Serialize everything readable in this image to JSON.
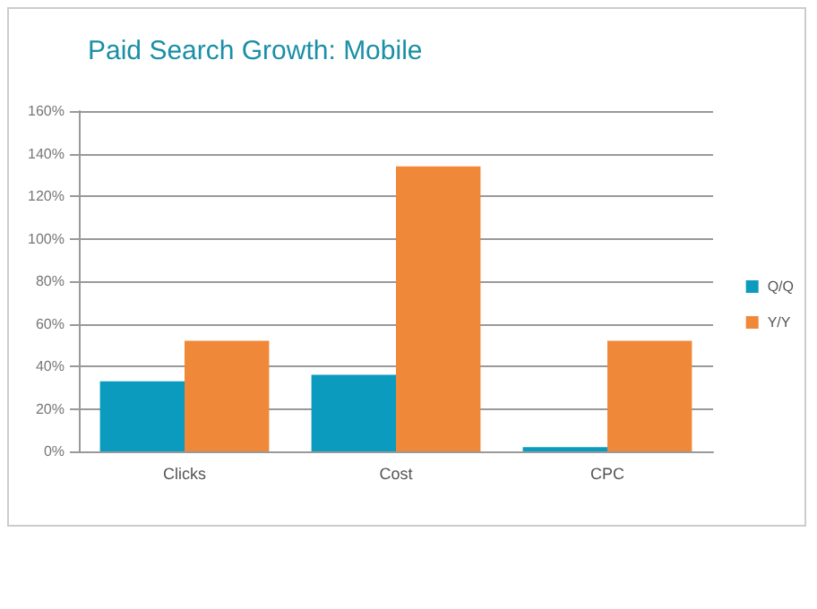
{
  "chart_data": {
    "type": "bar",
    "title": "Paid Search Growth: Mobile",
    "categories": [
      "Clicks",
      "Cost",
      "CPC"
    ],
    "series": [
      {
        "name": "Q/Q",
        "color": "#0a9bbf",
        "values": [
          33,
          36,
          2
        ]
      },
      {
        "name": "Y/Y",
        "color": "#f0883a",
        "values": [
          52,
          134,
          52
        ]
      }
    ],
    "ylim": [
      0,
      160
    ],
    "yticks": [
      {
        "value": 0,
        "label": "0%"
      },
      {
        "value": 20,
        "label": "20%"
      },
      {
        "value": 40,
        "label": "40%"
      },
      {
        "value": 60,
        "label": "60%"
      },
      {
        "value": 80,
        "label": "80%"
      },
      {
        "value": 100,
        "label": "100%"
      },
      {
        "value": 120,
        "label": "120%"
      },
      {
        "value": 140,
        "label": "140%"
      },
      {
        "value": 160,
        "label": "160%"
      }
    ],
    "grid": "y",
    "legend": "right"
  }
}
